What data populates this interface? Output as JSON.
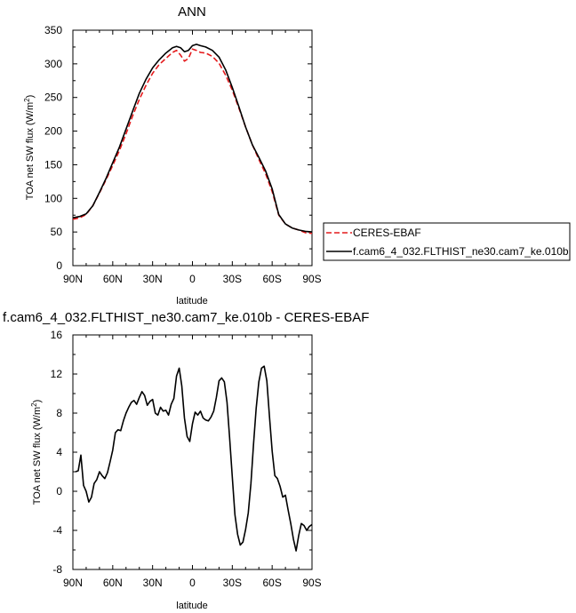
{
  "figure": {
    "background": "#ffffff"
  },
  "chart_data": [
    {
      "type": "line",
      "title": "ANN",
      "xlabel": "latitude",
      "ylabel": "TOA net SW flux (W/m",
      "ylabel_sup": "2",
      "ylabel_close": ")",
      "xlim": [
        90,
        -90
      ],
      "ylim": [
        0,
        350
      ],
      "xtick_values": [
        90,
        60,
        30,
        0,
        -30,
        -60,
        -90
      ],
      "xtick_labels": [
        "90N",
        "60N",
        "30N",
        "0",
        "30S",
        "60S",
        "90S"
      ],
      "ytick_values": [
        0,
        50,
        100,
        150,
        200,
        250,
        300,
        350
      ],
      "ytick_labels": [
        "0",
        "50",
        "100",
        "150",
        "200",
        "250",
        "300",
        "350"
      ],
      "grid": false,
      "legend": "outside right",
      "series": [
        {
          "name": "CERES-EBAF",
          "color": "#e41a1c",
          "dash": "dashed",
          "x": [
            90,
            85,
            80,
            75,
            70,
            65,
            60,
            55,
            50,
            45,
            40,
            35,
            30,
            25,
            20,
            15,
            12,
            9,
            6,
            3,
            0,
            -3,
            -6,
            -10,
            -15,
            -20,
            -25,
            -30,
            -35,
            -40,
            -45,
            -50,
            -55,
            -60,
            -65,
            -70,
            -75,
            -80,
            -85,
            -90
          ],
          "y": [
            69,
            71,
            76,
            89,
            108,
            128,
            149,
            171,
            196,
            223,
            247,
            268,
            286,
            299,
            308,
            317,
            320,
            313,
            304,
            308,
            322,
            320,
            317,
            316,
            311,
            301,
            283,
            261,
            234,
            206,
            180,
            158,
            137,
            110,
            75,
            62,
            56,
            53,
            49,
            48
          ]
        },
        {
          "name": "f.cam6_4_032.FLTHIST_ne30.cam7_ke.010b",
          "color": "#000000",
          "dash": "solid",
          "x": [
            90,
            85,
            80,
            75,
            70,
            65,
            60,
            55,
            50,
            45,
            40,
            35,
            30,
            25,
            20,
            15,
            12,
            9,
            6,
            3,
            0,
            -3,
            -6,
            -10,
            -15,
            -20,
            -25,
            -30,
            -35,
            -40,
            -45,
            -50,
            -55,
            -60,
            -65,
            -70,
            -75,
            -80,
            -85,
            -90
          ],
          "y": [
            71,
            73,
            77,
            89,
            109,
            130,
            153,
            176,
            203,
            230,
            256,
            277,
            294,
            306,
            316,
            324,
            326,
            324,
            318,
            320,
            327,
            329,
            327,
            325,
            320,
            310,
            291,
            265,
            236,
            206,
            180,
            161,
            141,
            114,
            76,
            62,
            56,
            53,
            51,
            50
          ]
        }
      ]
    },
    {
      "type": "line",
      "title": "f.cam6_4_032.FLTHIST_ne30.cam7_ke.010b - CERES-EBAF",
      "xlabel": "latitude",
      "ylabel": "TOA net SW flux (W/m",
      "ylabel_sup": "2",
      "ylabel_close": ")",
      "xlim": [
        90,
        -90
      ],
      "ylim": [
        -8,
        16
      ],
      "xtick_values": [
        90,
        60,
        30,
        0,
        -30,
        -60,
        -90
      ],
      "xtick_labels": [
        "90N",
        "60N",
        "30N",
        "0",
        "30S",
        "60S",
        "90S"
      ],
      "ytick_values": [
        -8,
        -4,
        0,
        4,
        8,
        12,
        16
      ],
      "ytick_labels": [
        "-8",
        "-4",
        "0",
        "4",
        "8",
        "12",
        "16"
      ],
      "grid": false,
      "series": [
        {
          "color": "#000000",
          "x": [
            88,
            86,
            84,
            82,
            80,
            78,
            76,
            74,
            72,
            70,
            68,
            66,
            64,
            62,
            60,
            58,
            56,
            54,
            52,
            50,
            48,
            46,
            44,
            42,
            40,
            38,
            36,
            34,
            32,
            30,
            28,
            26,
            24,
            22,
            20,
            18,
            16,
            14,
            12,
            10,
            8,
            6,
            4,
            2,
            0,
            -2,
            -4,
            -6,
            -8,
            -10,
            -12,
            -14,
            -16,
            -18,
            -20,
            -22,
            -24,
            -26,
            -28,
            -30,
            -32,
            -34,
            -36,
            -38,
            -40,
            -42,
            -44,
            -46,
            -48,
            -50,
            -52,
            -54,
            -56,
            -58,
            -60,
            -62,
            -64,
            -66,
            -68,
            -70,
            -72,
            -74,
            -76,
            -78,
            -80,
            -82,
            -84,
            -86,
            -88,
            -90
          ],
          "y": [
            2.0,
            2.1,
            3.7,
            0.6,
            0.0,
            -1.1,
            -0.6,
            0.8,
            1.2,
            2.0,
            1.6,
            1.3,
            1.9,
            3.0,
            4.2,
            6.0,
            6.3,
            6.2,
            7.2,
            8.0,
            8.6,
            9.1,
            9.3,
            8.9,
            9.6,
            10.2,
            9.8,
            8.8,
            9.2,
            9.4,
            8.0,
            7.8,
            8.6,
            8.2,
            8.3,
            7.8,
            8.9,
            9.5,
            11.8,
            12.6,
            10.8,
            7.5,
            5.6,
            5.1,
            6.9,
            8.1,
            7.8,
            8.2,
            7.5,
            7.3,
            7.2,
            7.6,
            8.2,
            9.6,
            11.3,
            11.6,
            11.2,
            9.1,
            5.5,
            1.5,
            -2.4,
            -4.4,
            -5.5,
            -5.2,
            -3.9,
            -2.2,
            0.8,
            4.8,
            8.5,
            11.2,
            12.6,
            12.8,
            11.3,
            7.6,
            4.1,
            1.6,
            1.3,
            0.5,
            -0.6,
            -0.4,
            -1.9,
            -3.3,
            -4.9,
            -6.1,
            -4.5,
            -3.3,
            -3.5,
            -4.0,
            -3.6,
            -3.4
          ]
        }
      ]
    }
  ]
}
